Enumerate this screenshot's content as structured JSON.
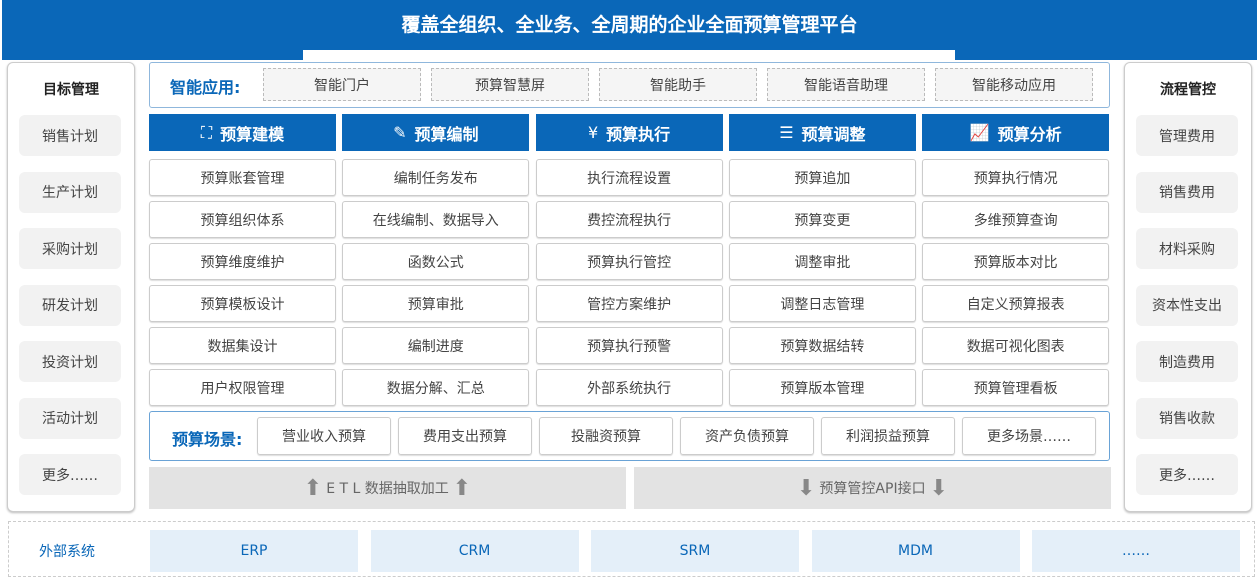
{
  "header": {
    "title": "覆盖全组织、全业务、全周期的企业全面预算管理平台"
  },
  "left": {
    "title": "目标管理",
    "items": [
      "销售计划",
      "生产计划",
      "采购计划",
      "研发计划",
      "投资计划",
      "活动计划",
      "更多……"
    ]
  },
  "right": {
    "title": "流程管控",
    "items": [
      "管理费用",
      "销售费用",
      "材料采购",
      "资本性支出",
      "制造费用",
      "销售收款",
      "更多……"
    ]
  },
  "smart": {
    "label": "智能应用:",
    "items": [
      "智能门户",
      "预算智慧屏",
      "智能助手",
      "智能语音助理",
      "智能移动应用"
    ]
  },
  "modules": [
    {
      "title": "预算建模",
      "icon": "cubes-icon",
      "items": [
        "预算账套管理",
        "预算组织体系",
        "预算维度维护",
        "预算模板设计",
        "数据集设计",
        "用户权限管理"
      ]
    },
    {
      "title": "预算编制",
      "icon": "edit-icon",
      "items": [
        "编制任务发布",
        "在线编制、数据导入",
        "函数公式",
        "预算审批",
        "编制进度",
        "数据分解、汇总"
      ]
    },
    {
      "title": "预算执行",
      "icon": "clipboard-yuan-icon",
      "items": [
        "执行流程设置",
        "费控流程执行",
        "预算执行管控",
        "管控方案维护",
        "预算执行预警",
        "外部系统执行"
      ]
    },
    {
      "title": "预算调整",
      "icon": "sliders-icon",
      "items": [
        "预算追加",
        "预算变更",
        "调整审批",
        "调整日志管理",
        "预算数据结转",
        "预算版本管理"
      ]
    },
    {
      "title": "预算分析",
      "icon": "chart-icon",
      "items": [
        "预算执行情况",
        "多维预算查询",
        "预算版本对比",
        "自定义预算报表",
        "数据可视化图表",
        "预算管理看板"
      ]
    }
  ],
  "scene": {
    "label": "预算场景:",
    "items": [
      "营业收入预算",
      "费用支出预算",
      "投融资预算",
      "资产负债预算",
      "利润损益预算",
      "更多场景……"
    ]
  },
  "etl": {
    "left": "E T L 数据抽取加工",
    "right": "预算管控API接口"
  },
  "external": {
    "label": "外部系统",
    "items": [
      "ERP",
      "CRM",
      "SRM",
      "MDM",
      "……"
    ]
  },
  "colors": {
    "primary": "#0a67b8",
    "light": "#e4eff9"
  }
}
